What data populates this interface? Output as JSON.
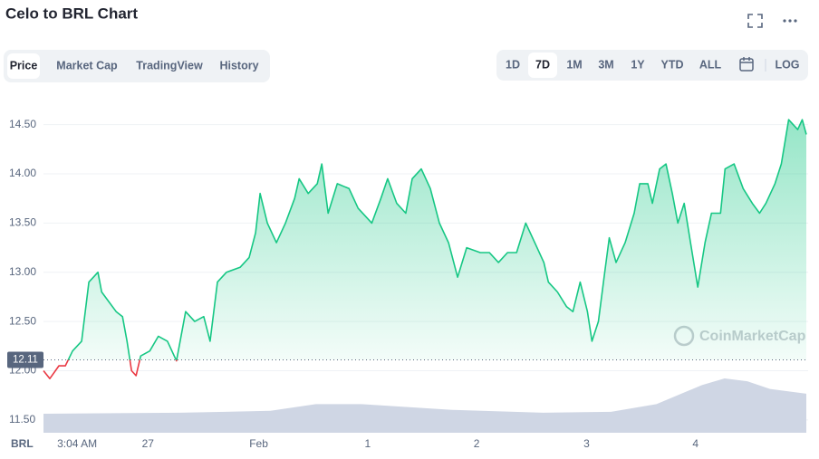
{
  "header": {
    "title": "Celo to BRL Chart"
  },
  "tabs": {
    "items": [
      "Price",
      "Market Cap",
      "TradingView",
      "History"
    ],
    "selected": 0
  },
  "ranges": {
    "items": [
      "1D",
      "7D",
      "1M",
      "3M",
      "1Y",
      "YTD",
      "ALL"
    ],
    "selected": 1,
    "scale_button": "LOG"
  },
  "watermark": "CoinMarketCap",
  "chart_data": {
    "type": "line",
    "y_label": "BRL",
    "color": "#16c784",
    "down_color": "#ea3943",
    "reference": 12.11,
    "grid": true,
    "x": [
      0,
      1.4,
      3.4,
      4.8,
      6.4,
      8.4,
      10,
      11,
      12,
      12.8,
      14.4,
      16,
      17.4,
      18.4,
      19.4,
      20.4,
      21.4,
      23.4,
      25.3,
      27.3,
      29.3,
      31.3,
      33.3,
      35.3,
      36.7,
      38.3,
      40.3,
      43.3,
      45.3,
      46.7,
      47.7,
      49.3,
      51.3,
      53.3,
      55.3,
      56.3,
      58.3,
      60.3,
      61.3,
      62.7,
      64.7,
      67.3,
      69.3,
      72.3,
      74.3,
      75.8,
      77.8,
      79.8,
      81.2,
      83.2,
      85.2,
      87.2,
      89.2,
      91.2,
      93.2,
      96.2,
      98.2,
      100.2,
      102.2,
      104.2,
      106.2,
      108.2,
      110.2,
      111.2,
      113.2,
      115.2,
      116.6,
      118.2,
      119.8,
      120.8,
      122.2,
      123.6,
      124.6,
      126.1,
      128.1,
      130.1,
      131.3,
      133.1,
      134.1,
      135.7,
      137.1,
      138.5,
      139.7,
      141.1,
      142.5,
      144.1,
      145.7,
      147.1,
      149.1,
      150.1,
      152.1,
      154.1,
      156.1,
      157.7,
      159.1,
      161.1,
      162.5,
      164.1,
      166.1,
      167.1,
      168
    ],
    "values": [
      12.0,
      11.92,
      12.05,
      12.05,
      12.2,
      12.3,
      12.9,
      12.95,
      13.0,
      12.8,
      12.7,
      12.6,
      12.55,
      12.3,
      12.0,
      11.95,
      12.15,
      12.2,
      12.35,
      12.3,
      12.1,
      12.6,
      12.5,
      12.55,
      12.3,
      12.9,
      13.0,
      13.05,
      13.15,
      13.4,
      13.8,
      13.5,
      13.3,
      13.5,
      13.75,
      13.95,
      13.8,
      13.9,
      14.1,
      13.6,
      13.9,
      13.85,
      13.65,
      13.5,
      13.75,
      13.95,
      13.7,
      13.6,
      13.95,
      14.05,
      13.85,
      13.5,
      13.3,
      12.95,
      13.25,
      13.2,
      13.2,
      13.1,
      13.2,
      13.2,
      13.5,
      13.3,
      13.1,
      12.9,
      12.8,
      12.65,
      12.6,
      12.9,
      12.6,
      12.3,
      12.5,
      13.0,
      13.35,
      13.1,
      13.3,
      13.6,
      13.9,
      13.9,
      13.7,
      14.05,
      14.1,
      13.8,
      13.5,
      13.7,
      13.3,
      12.85,
      13.3,
      13.6,
      13.6,
      14.05,
      14.1,
      13.85,
      13.7,
      13.6,
      13.7,
      13.9,
      14.1,
      14.55,
      14.45,
      14.55,
      14.4
    ],
    "xlim": [
      0,
      168
    ],
    "ylim": [
      11.37,
      14.8
    ],
    "xticks": [
      {
        "value": 7.4,
        "label": "3:04 AM"
      },
      {
        "value": 23,
        "label": "27"
      },
      {
        "value": 47.4,
        "label": "Feb"
      },
      {
        "value": 71.4,
        "label": "1"
      },
      {
        "value": 95.4,
        "label": "2"
      },
      {
        "value": 119.6,
        "label": "3"
      },
      {
        "value": 143.6,
        "label": "4"
      }
    ],
    "yticks": [
      {
        "value": 11.5,
        "label": "11.50"
      },
      {
        "value": 12,
        "label": "12.00"
      },
      {
        "value": 12.5,
        "label": "12.50"
      },
      {
        "value": 13,
        "label": "13.00"
      },
      {
        "value": 13.5,
        "label": "13.50"
      },
      {
        "value": 14,
        "label": "14.00"
      },
      {
        "value": 14.5,
        "label": "14.50"
      }
    ],
    "volume": {
      "color": "#cfd6e4",
      "x": [
        0,
        30,
        50,
        60,
        70,
        90,
        110,
        125,
        135,
        145,
        150,
        155,
        160,
        168
      ],
      "values": [
        20,
        21,
        23,
        30,
        30,
        24,
        21,
        22,
        30,
        50,
        57,
        54,
        46,
        41
      ]
    }
  }
}
